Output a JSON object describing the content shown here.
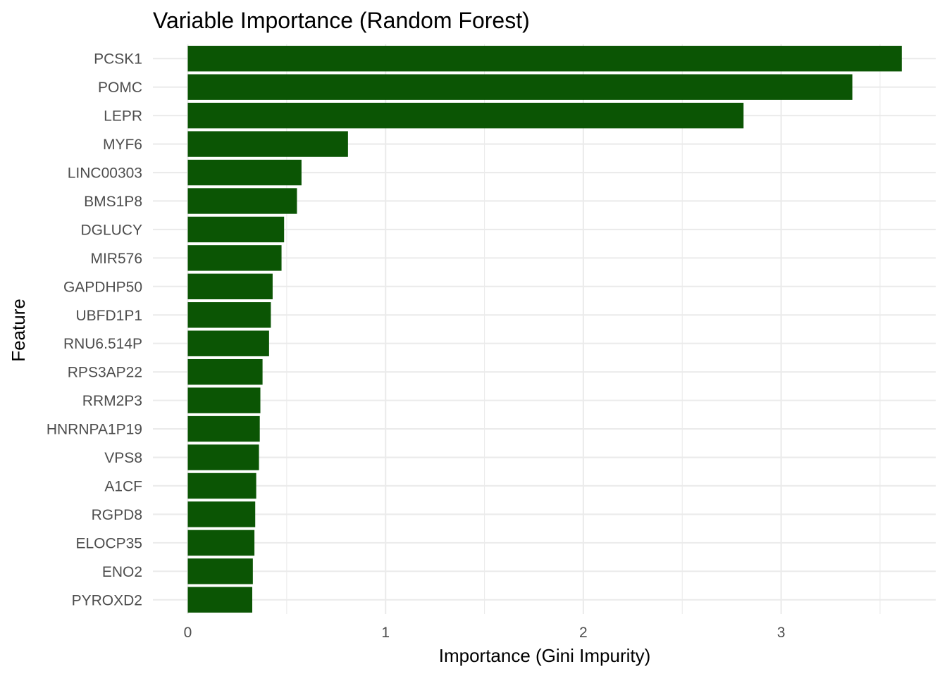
{
  "chart_data": {
    "type": "bar",
    "orientation": "horizontal",
    "title": "Variable Importance (Random Forest)",
    "xlabel": "Importance (Gini Impurity)",
    "ylabel": "Feature",
    "xlim": [
      0,
      3.75
    ],
    "x_ticks": [
      0,
      1,
      2,
      3
    ],
    "grid": true,
    "bar_color": "#0b5504",
    "categories": [
      "PCSK1",
      "POMC",
      "LEPR",
      "MYF6",
      "LINC00303",
      "BMS1P8",
      "DGLUCY",
      "MIR576",
      "GAPDHP50",
      "UBFD1P1",
      "RNU6.514P",
      "RPS3AP22",
      "RRM2P3",
      "HNRNPA1P19",
      "VPS8",
      "A1CF",
      "RGPD8",
      "ELOCP35",
      "ENO2",
      "PYROXD2"
    ],
    "values": [
      3.61,
      3.36,
      2.81,
      0.81,
      0.575,
      0.552,
      0.487,
      0.474,
      0.429,
      0.42,
      0.411,
      0.378,
      0.367,
      0.364,
      0.36,
      0.346,
      0.341,
      0.337,
      0.329,
      0.326
    ]
  }
}
